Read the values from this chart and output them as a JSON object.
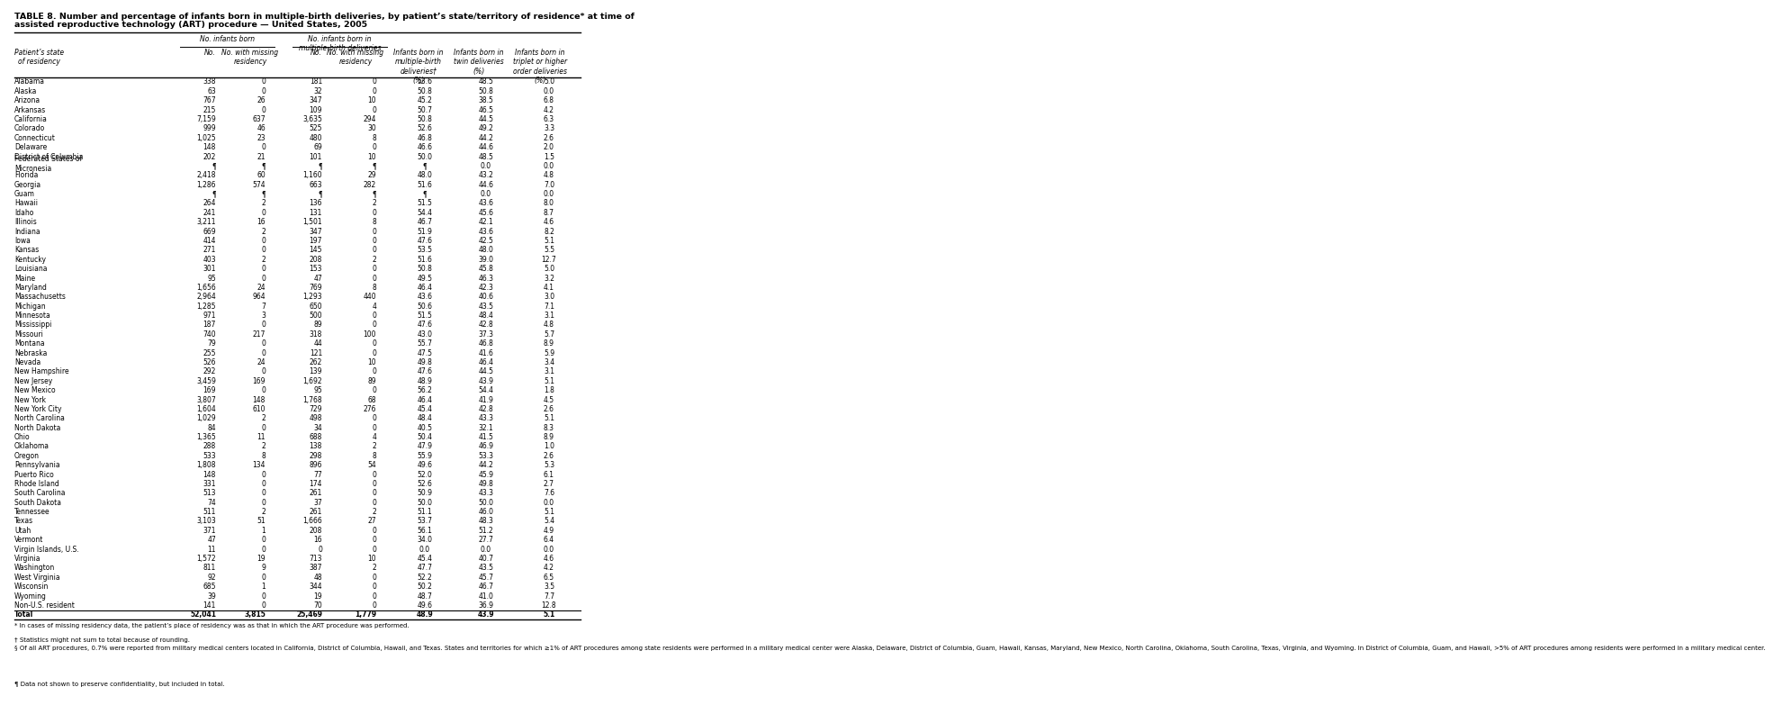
{
  "title1": "TABLE 8. Number and percentage of infants born in multiple-birth deliveries, by patient’s state/territory of residence* at time of",
  "title2": "assisted reproductive technology (ART) procedure — United States, 2005",
  "rows": [
    [
      "Alabama",
      "338",
      "0",
      "181",
      "0",
      "53.6",
      "48.5",
      "5.0"
    ],
    [
      "Alaska",
      "63",
      "0",
      "32",
      "0",
      "50.8",
      "50.8",
      "0.0"
    ],
    [
      "Arizona",
      "767",
      "26",
      "347",
      "10",
      "45.2",
      "38.5",
      "6.8"
    ],
    [
      "Arkansas",
      "215",
      "0",
      "109",
      "0",
      "50.7",
      "46.5",
      "4.2"
    ],
    [
      "California",
      "7,159",
      "637",
      "3,635",
      "294",
      "50.8",
      "44.5",
      "6.3"
    ],
    [
      "Colorado",
      "999",
      "46",
      "525",
      "30",
      "52.6",
      "49.2",
      "3.3"
    ],
    [
      "Connecticut",
      "1,025",
      "23",
      "480",
      "8",
      "46.8",
      "44.2",
      "2.6"
    ],
    [
      "Delaware",
      "148",
      "0",
      "69",
      "0",
      "46.6",
      "44.6",
      "2.0"
    ],
    [
      "District of Columbia",
      "202",
      "21",
      "101",
      "10",
      "50.0",
      "48.5",
      "1.5"
    ],
    [
      "Federated States of\nMicronesia",
      "¶",
      "¶",
      "¶",
      "¶",
      "¶",
      "0.0",
      "0.0"
    ],
    [
      "Florida",
      "2,418",
      "60",
      "1,160",
      "29",
      "48.0",
      "43.2",
      "4.8"
    ],
    [
      "Georgia",
      "1,286",
      "574",
      "663",
      "282",
      "51.6",
      "44.6",
      "7.0"
    ],
    [
      "Guam",
      "¶",
      "¶",
      "¶",
      "¶",
      "¶",
      "0.0",
      "0.0"
    ],
    [
      "Hawaii",
      "264",
      "2",
      "136",
      "2",
      "51.5",
      "43.6",
      "8.0"
    ],
    [
      "Idaho",
      "241",
      "0",
      "131",
      "0",
      "54.4",
      "45.6",
      "8.7"
    ],
    [
      "Illinois",
      "3,211",
      "16",
      "1,501",
      "8",
      "46.7",
      "42.1",
      "4.6"
    ],
    [
      "Indiana",
      "669",
      "2",
      "347",
      "0",
      "51.9",
      "43.6",
      "8.2"
    ],
    [
      "Iowa",
      "414",
      "0",
      "197",
      "0",
      "47.6",
      "42.5",
      "5.1"
    ],
    [
      "Kansas",
      "271",
      "0",
      "145",
      "0",
      "53.5",
      "48.0",
      "5.5"
    ],
    [
      "Kentucky",
      "403",
      "2",
      "208",
      "2",
      "51.6",
      "39.0",
      "12.7"
    ],
    [
      "Louisiana",
      "301",
      "0",
      "153",
      "0",
      "50.8",
      "45.8",
      "5.0"
    ],
    [
      "Maine",
      "95",
      "0",
      "47",
      "0",
      "49.5",
      "46.3",
      "3.2"
    ],
    [
      "Maryland",
      "1,656",
      "24",
      "769",
      "8",
      "46.4",
      "42.3",
      "4.1"
    ],
    [
      "Massachusetts",
      "2,964",
      "964",
      "1,293",
      "440",
      "43.6",
      "40.6",
      "3.0"
    ],
    [
      "Michigan",
      "1,285",
      "7",
      "650",
      "4",
      "50.6",
      "43.5",
      "7.1"
    ],
    [
      "Minnesota",
      "971",
      "3",
      "500",
      "0",
      "51.5",
      "48.4",
      "3.1"
    ],
    [
      "Mississippi",
      "187",
      "0",
      "89",
      "0",
      "47.6",
      "42.8",
      "4.8"
    ],
    [
      "Missouri",
      "740",
      "217",
      "318",
      "100",
      "43.0",
      "37.3",
      "5.7"
    ],
    [
      "Montana",
      "79",
      "0",
      "44",
      "0",
      "55.7",
      "46.8",
      "8.9"
    ],
    [
      "Nebraska",
      "255",
      "0",
      "121",
      "0",
      "47.5",
      "41.6",
      "5.9"
    ],
    [
      "Nevada",
      "526",
      "24",
      "262",
      "10",
      "49.8",
      "46.4",
      "3.4"
    ],
    [
      "New Hampshire",
      "292",
      "0",
      "139",
      "0",
      "47.6",
      "44.5",
      "3.1"
    ],
    [
      "New Jersey",
      "3,459",
      "169",
      "1,692",
      "89",
      "48.9",
      "43.9",
      "5.1"
    ],
    [
      "New Mexico",
      "169",
      "0",
      "95",
      "0",
      "56.2",
      "54.4",
      "1.8"
    ],
    [
      "New York",
      "3,807",
      "148",
      "1,768",
      "68",
      "46.4",
      "41.9",
      "4.5"
    ],
    [
      "New York City",
      "1,604",
      "610",
      "729",
      "276",
      "45.4",
      "42.8",
      "2.6"
    ],
    [
      "North Carolina",
      "1,029",
      "2",
      "498",
      "0",
      "48.4",
      "43.3",
      "5.1"
    ],
    [
      "North Dakota",
      "84",
      "0",
      "34",
      "0",
      "40.5",
      "32.1",
      "8.3"
    ],
    [
      "Ohio",
      "1,365",
      "11",
      "688",
      "4",
      "50.4",
      "41.5",
      "8.9"
    ],
    [
      "Oklahoma",
      "288",
      "2",
      "138",
      "2",
      "47.9",
      "46.9",
      "1.0"
    ],
    [
      "Oregon",
      "533",
      "8",
      "298",
      "8",
      "55.9",
      "53.3",
      "2.6"
    ],
    [
      "Pennsylvania",
      "1,808",
      "134",
      "896",
      "54",
      "49.6",
      "44.2",
      "5.3"
    ],
    [
      "Puerto Rico",
      "148",
      "0",
      "77",
      "0",
      "52.0",
      "45.9",
      "6.1"
    ],
    [
      "Rhode Island",
      "331",
      "0",
      "174",
      "0",
      "52.6",
      "49.8",
      "2.7"
    ],
    [
      "South Carolina",
      "513",
      "0",
      "261",
      "0",
      "50.9",
      "43.3",
      "7.6"
    ],
    [
      "South Dakota",
      "74",
      "0",
      "37",
      "0",
      "50.0",
      "50.0",
      "0.0"
    ],
    [
      "Tennessee",
      "511",
      "2",
      "261",
      "2",
      "51.1",
      "46.0",
      "5.1"
    ],
    [
      "Texas",
      "3,103",
      "51",
      "1,666",
      "27",
      "53.7",
      "48.3",
      "5.4"
    ],
    [
      "Utah",
      "371",
      "1",
      "208",
      "0",
      "56.1",
      "51.2",
      "4.9"
    ],
    [
      "Vermont",
      "47",
      "0",
      "16",
      "0",
      "34.0",
      "27.7",
      "6.4"
    ],
    [
      "Virgin Islands, U.S.",
      "11",
      "0",
      "0",
      "0",
      "0.0",
      "0.0",
      "0.0"
    ],
    [
      "Virginia",
      "1,572",
      "19",
      "713",
      "10",
      "45.4",
      "40.7",
      "4.6"
    ],
    [
      "Washington",
      "811",
      "9",
      "387",
      "2",
      "47.7",
      "43.5",
      "4.2"
    ],
    [
      "West Virginia",
      "92",
      "0",
      "48",
      "0",
      "52.2",
      "45.7",
      "6.5"
    ],
    [
      "Wisconsin",
      "685",
      "1",
      "344",
      "0",
      "50.2",
      "46.7",
      "3.5"
    ],
    [
      "Wyoming",
      "39",
      "0",
      "19",
      "0",
      "48.7",
      "41.0",
      "7.7"
    ],
    [
      "Non-U.S. resident",
      "141",
      "0",
      "70",
      "0",
      "49.6",
      "36.9",
      "12.8"
    ],
    [
      "Total",
      "52,041",
      "3,815",
      "25,469",
      "1,779",
      "48.9",
      "43.9",
      "5.1"
    ]
  ],
  "footnotes": [
    "* In cases of missing residency data, the patient’s place of residency was as that in which the ART procedure was performed.",
    "† Statistics might not sum to total because of rounding.",
    "§ Of all ART procedures, 0.7% were reported from military medical centers located in California, District of Columbia, Hawaii, and Texas. States and territories for which ≥1% of ART procedures among state residents were performed in a military medical center were Alaska, Delaware, District of Columbia, Guam, Hawaii, Kansas, Maryland, New Mexico, North Carolina, Oklahoma, South Carolina, Texas, Virginia, and Wyoming. In District of Columbia, Guam, and Hawaii, >5% of ART procedures among residents were performed in a military medical center.",
    "¶ Data not shown to preserve confidentiality, but included in total."
  ],
  "bg_color": "#ffffff",
  "font_size": 5.5,
  "title_font_size": 6.8,
  "footnote_font_size": 5.0
}
